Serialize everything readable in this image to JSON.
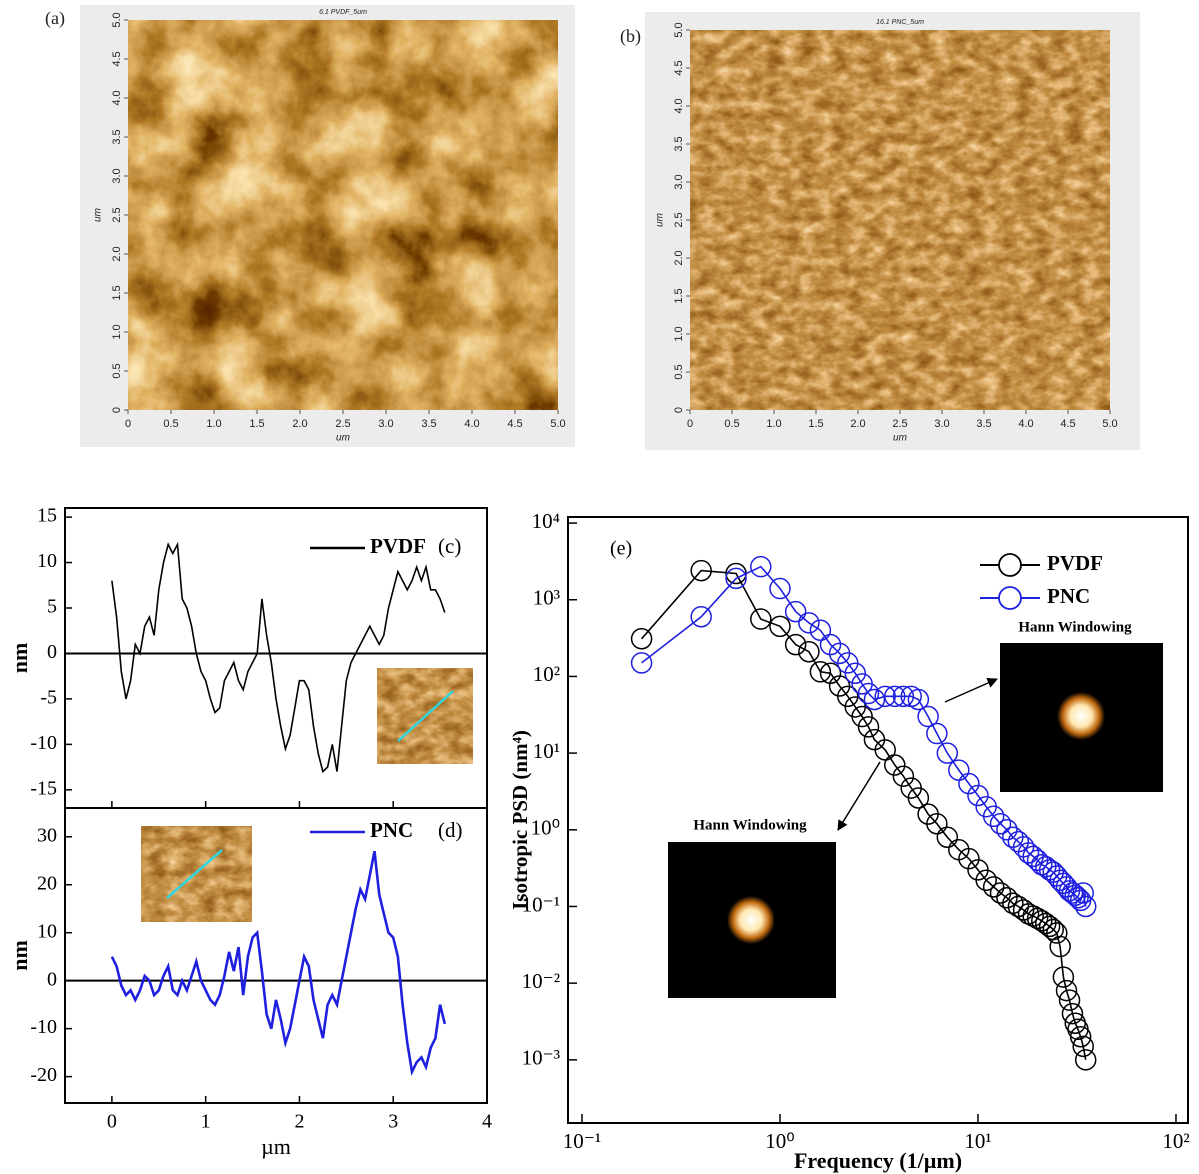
{
  "chart_data": [
    {
      "type": "image",
      "panel_label": "(a)",
      "title": "6.1 PVDF_5um",
      "xlabel": "um",
      "ylabel": "um",
      "xlim": [
        0,
        5
      ],
      "ylim": [
        0,
        5
      ],
      "xticks": [
        0,
        0.5,
        {
          "value": 1,
          "label": "1.0"
        },
        1.5,
        {
          "value": 2,
          "label": "2.0"
        },
        2.5,
        {
          "value": 3,
          "label": "3.0"
        },
        3.5,
        {
          "value": 4,
          "label": "4.0"
        },
        4.5,
        {
          "value": 5,
          "label": "5.0"
        }
      ],
      "yticks": [
        0,
        0.5,
        {
          "value": 1,
          "label": "1.0"
        },
        1.5,
        {
          "value": 2,
          "label": "2.0"
        },
        2.5,
        {
          "value": 3,
          "label": "3.0"
        },
        3.5,
        {
          "value": 4,
          "label": "4.0"
        },
        4.5,
        {
          "value": 5,
          "label": "5.0"
        }
      ]
    },
    {
      "type": "image",
      "panel_label": "(b)",
      "title": "16.1 PNC_5um",
      "xlabel": "um",
      "ylabel": "um",
      "xlim": [
        0,
        5
      ],
      "ylim": [
        0,
        5
      ],
      "xticks": [
        0,
        0.5,
        {
          "value": 1,
          "label": "1.0"
        },
        1.5,
        {
          "value": 2,
          "label": "2.0"
        },
        2.5,
        {
          "value": 3,
          "label": "3.0"
        },
        3.5,
        {
          "value": 4,
          "label": "4.0"
        },
        4.5,
        {
          "value": 5,
          "label": "5.0"
        }
      ],
      "yticks": [
        0,
        0.5,
        {
          "value": 1,
          "label": "1.0"
        },
        1.5,
        {
          "value": 2,
          "label": "2.0"
        },
        2.5,
        {
          "value": 3,
          "label": "3.0"
        },
        3.5,
        {
          "value": 4,
          "label": "4.0"
        },
        4.5,
        {
          "value": 5,
          "label": "5.0"
        }
      ]
    },
    {
      "type": "line",
      "panel_label": "(c)",
      "ylabel": "nm",
      "xlim": [
        -0.5,
        4
      ],
      "ylim": [
        -17,
        16
      ],
      "xticks": [
        0,
        1,
        2,
        3,
        4
      ],
      "yticks": [
        -15,
        -10,
        -5,
        0,
        5,
        10,
        15
      ],
      "reference_line": 0,
      "series": [
        {
          "name": "PVDF",
          "color": "#000000",
          "x": [
            0,
            0.05,
            0.1,
            0.15,
            0.2,
            0.25,
            0.3,
            0.35,
            0.4,
            0.45,
            0.5,
            0.55,
            0.6,
            0.65,
            0.7,
            0.75,
            0.8,
            0.85,
            0.9,
            0.95,
            1.0,
            1.05,
            1.1,
            1.15,
            1.2,
            1.25,
            1.3,
            1.35,
            1.4,
            1.45,
            1.5,
            1.55,
            1.6,
            1.65,
            1.7,
            1.75,
            1.8,
            1.85,
            1.9,
            1.95,
            2.0,
            2.05,
            2.1,
            2.15,
            2.2,
            2.25,
            2.3,
            2.35,
            2.4,
            2.45,
            2.5,
            2.55,
            2.6,
            2.65,
            2.7,
            2.75,
            2.8,
            2.85,
            2.9,
            2.95,
            3.0,
            3.05,
            3.1,
            3.15,
            3.2,
            3.25,
            3.3,
            3.35,
            3.4,
            3.45,
            3.5,
            3.55
          ],
          "values": [
            8,
            4,
            -2,
            -5,
            -3,
            1,
            0,
            3,
            4,
            2,
            7,
            10,
            12,
            11,
            12,
            6,
            5,
            3,
            0,
            -2,
            -3,
            -5,
            -6.5,
            -6,
            -3,
            -2,
            -1,
            -3,
            -4,
            -2,
            -1,
            0,
            6,
            2,
            -1,
            -5,
            -8,
            -10.5,
            -9,
            -6,
            -3,
            -3,
            -4,
            -8,
            -11,
            -13,
            -12.5,
            -10,
            -13,
            -8,
            -3,
            -1,
            0,
            1,
            2,
            3,
            2,
            1,
            2,
            5,
            7,
            9,
            8,
            7,
            8,
            9.5,
            8,
            9.5,
            7,
            7,
            6,
            4.5
          ]
        }
      ]
    },
    {
      "type": "line",
      "panel_label": "(d)",
      "ylabel": "nm",
      "xlabel": "µm",
      "xlim": [
        -0.5,
        4
      ],
      "ylim": [
        -25.5,
        36
      ],
      "xticks": [
        0,
        1,
        2,
        3,
        4
      ],
      "yticks": [
        -20,
        -10,
        0,
        10,
        20,
        30
      ],
      "reference_line": 0,
      "series": [
        {
          "name": "PNC",
          "color": "#1f1fe0",
          "x": [
            0,
            0.05,
            0.1,
            0.15,
            0.2,
            0.25,
            0.3,
            0.35,
            0.4,
            0.45,
            0.5,
            0.55,
            0.6,
            0.65,
            0.7,
            0.75,
            0.8,
            0.85,
            0.9,
            0.95,
            1.0,
            1.05,
            1.1,
            1.15,
            1.2,
            1.25,
            1.3,
            1.35,
            1.4,
            1.45,
            1.5,
            1.55,
            1.6,
            1.65,
            1.7,
            1.75,
            1.8,
            1.85,
            1.9,
            1.95,
            2.0,
            2.05,
            2.1,
            2.15,
            2.2,
            2.25,
            2.3,
            2.35,
            2.4,
            2.45,
            2.5,
            2.55,
            2.6,
            2.65,
            2.7,
            2.75,
            2.8,
            2.85,
            2.9,
            2.95,
            3.0,
            3.05,
            3.1,
            3.15,
            3.2,
            3.25,
            3.3,
            3.35,
            3.4,
            3.45,
            3.5,
            3.55
          ],
          "values": [
            5,
            3,
            -1,
            -3,
            -2,
            -4,
            -2,
            1,
            0,
            -3,
            -2,
            1,
            3,
            -2,
            -3,
            0,
            -2,
            1,
            4,
            0,
            -2,
            -4,
            -5,
            -3,
            1,
            6,
            2,
            7,
            -3,
            5,
            9,
            10,
            2,
            -7,
            -10,
            -4,
            -8,
            -13,
            -10,
            -5,
            0,
            5,
            3,
            -4,
            -8,
            -12,
            -5,
            -3,
            -5,
            0,
            5,
            10,
            15,
            19,
            17,
            22,
            27,
            18,
            14,
            10,
            9,
            5,
            -5,
            -13,
            -19,
            -17,
            -16,
            -18,
            -14,
            -12,
            -5,
            -9
          ]
        }
      ]
    },
    {
      "type": "scatter",
      "panel_label": "(e)",
      "xlabel": "Frequency (1/µm)",
      "ylabel": "Isotropic PSD (nm⁴)",
      "log_x": true,
      "log_y": true,
      "xlim": [
        0.085,
        115
      ],
      "ylim": [
        0.00015,
        12000
      ],
      "xticks": [
        {
          "value": 0.1,
          "label": "10⁻¹"
        },
        {
          "value": 1,
          "label": "10⁰"
        },
        {
          "value": 10,
          "label": "10¹"
        },
        {
          "value": 100,
          "label": "10²"
        }
      ],
      "yticks": [
        {
          "value": 0.001,
          "label": "10⁻³"
        },
        {
          "value": 0.01,
          "label": "10⁻²"
        },
        {
          "value": 0.1,
          "label": "10⁻¹"
        },
        {
          "value": 1,
          "label": "10⁰"
        },
        {
          "value": 10,
          "label": "10¹"
        },
        {
          "value": 100,
          "label": "10²"
        },
        {
          "value": 1000,
          "label": "10³"
        },
        {
          "value": 10000,
          "label": "10⁴"
        }
      ],
      "annotations": [
        "Hann Windowing",
        "Hann Windowing"
      ],
      "series": [
        {
          "name": "PVDF",
          "color": "#000000",
          "x": [
            0.2,
            0.4,
            0.6,
            0.8,
            1.0,
            1.2,
            1.4,
            1.6,
            1.8,
            2.0,
            2.2,
            2.4,
            2.6,
            2.8,
            3.0,
            3.4,
            3.8,
            4.2,
            4.6,
            5.0,
            5.6,
            6.2,
            7,
            8,
            9,
            10,
            11,
            12,
            13,
            14,
            15,
            16,
            17,
            18,
            19,
            20,
            21,
            22,
            23,
            24,
            25,
            26,
            27,
            28,
            29,
            30,
            31,
            32,
            33,
            34,
            35
          ],
          "values": [
            310,
            2400,
            2200,
            560,
            450,
            260,
            210,
            115,
            110,
            75,
            55,
            40,
            30,
            22,
            15,
            11,
            7,
            5,
            3.5,
            2.6,
            1.6,
            1.2,
            0.8,
            0.55,
            0.42,
            0.3,
            0.22,
            0.18,
            0.15,
            0.13,
            0.11,
            0.1,
            0.09,
            0.08,
            0.075,
            0.07,
            0.065,
            0.06,
            0.055,
            0.05,
            0.045,
            0.03,
            0.012,
            0.008,
            0.006,
            0.004,
            0.003,
            0.0025,
            0.002,
            0.0015,
            0.001
          ]
        },
        {
          "name": "PNC",
          "color": "#1f1fe0",
          "x": [
            0.2,
            0.4,
            0.6,
            0.8,
            1.0,
            1.2,
            1.4,
            1.6,
            1.8,
            2.0,
            2.2,
            2.4,
            2.6,
            2.8,
            3.0,
            3.4,
            3.8,
            4.2,
            4.6,
            5.0,
            5.6,
            6.2,
            7,
            8,
            9,
            10,
            11,
            12,
            13,
            14,
            15,
            16,
            17,
            18,
            19,
            20,
            21,
            22,
            23,
            24,
            25,
            26,
            27,
            28,
            29,
            30,
            31,
            32,
            33,
            34,
            35
          ],
          "values": [
            150,
            600,
            1900,
            2700,
            1400,
            700,
            500,
            400,
            260,
            200,
            150,
            110,
            80,
            60,
            50,
            55,
            55,
            55,
            55,
            50,
            30,
            18,
            10,
            6,
            4,
            2.8,
            2,
            1.5,
            1.2,
            1,
            0.8,
            0.7,
            0.6,
            0.5,
            0.45,
            0.4,
            0.35,
            0.33,
            0.3,
            0.28,
            0.25,
            0.22,
            0.2,
            0.18,
            0.16,
            0.15,
            0.14,
            0.13,
            0.12,
            0.15,
            0.1
          ]
        }
      ]
    }
  ]
}
